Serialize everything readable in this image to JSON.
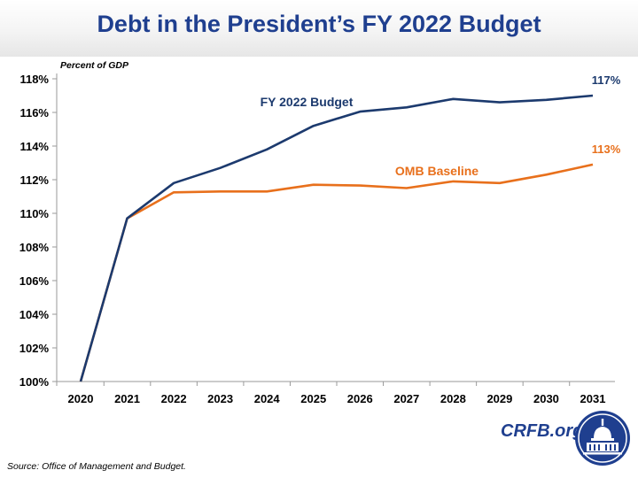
{
  "title": "Debt in the President’s FY 2022 Budget",
  "source": "Source: Office of Management and Budget.",
  "brand": "CRFB.org",
  "chart_data": {
    "type": "line",
    "title": "Debt in the President’s FY 2022 Budget",
    "ylabel": "Percent of GDP",
    "xlabel": "",
    "x": [
      2020,
      2021,
      2022,
      2023,
      2024,
      2025,
      2026,
      2027,
      2028,
      2029,
      2030,
      2031
    ],
    "yticks": [
      "100%",
      "102%",
      "104%",
      "106%",
      "108%",
      "110%",
      "112%",
      "114%",
      "116%",
      "118%"
    ],
    "ylim": [
      100,
      118
    ],
    "grid": false,
    "series": [
      {
        "name": "FY 2022 Budget",
        "color": "#1c3a6e",
        "values": [
          100,
          109.7,
          111.8,
          112.7,
          113.8,
          115.2,
          116.05,
          116.3,
          116.8,
          116.6,
          116.75,
          117.0
        ],
        "end_label": "117%"
      },
      {
        "name": "OMB Baseline",
        "color": "#e8701c",
        "values": [
          100,
          109.7,
          111.25,
          111.3,
          111.3,
          111.7,
          111.65,
          111.5,
          111.9,
          111.8,
          112.3,
          112.9
        ],
        "end_label": "113%"
      }
    ]
  }
}
